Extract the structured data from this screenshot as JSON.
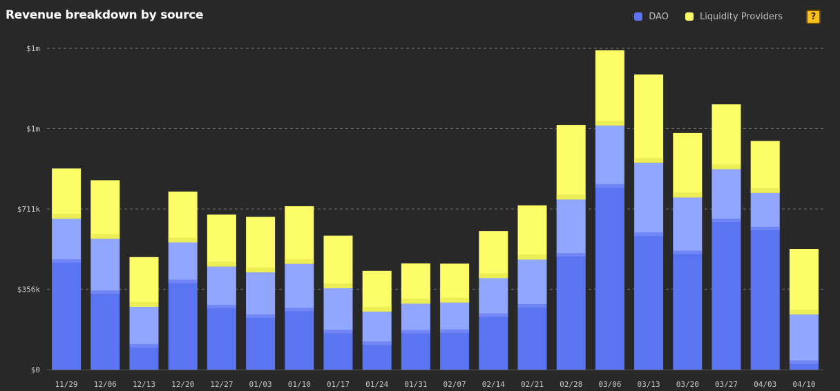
{
  "header": {
    "title": "Revenue breakdown by source"
  },
  "legend": {
    "items": [
      {
        "label": "DAO",
        "color": "#5b75f2"
      },
      {
        "label": "Liquidity Providers",
        "color": "#fdfd6a"
      }
    ],
    "help_icon": "question-block-icon",
    "help_glyph": "?"
  },
  "colors": {
    "dao": "#5b75f2",
    "dao_light": "#91a6fe",
    "dao_sep": "#7186f6",
    "lp": "#fdfd6a",
    "lp_sep": "#eded55",
    "background": "#282828",
    "grid": "#a0a0a0"
  },
  "chart_data": {
    "type": "bar",
    "stacked": true,
    "title": "Revenue breakdown by source",
    "categories": [
      "11/29",
      "12/06",
      "12/13",
      "12/20",
      "12/27",
      "01/03",
      "01/10",
      "01/17",
      "01/24",
      "01/31",
      "02/07",
      "02/14",
      "02/21",
      "02/28",
      "03/06",
      "03/13",
      "03/20",
      "03/27",
      "04/03",
      "04/10"
    ],
    "series": [
      {
        "name": "DAO",
        "color": "#5b75f2",
        "values": [
          473,
          335,
          98,
          383,
          271,
          229,
          258,
          161,
          109,
          160,
          163,
          233,
          275,
          500,
          806,
          592,
          511,
          653,
          617,
          25
        ]
      },
      {
        "name": "DAO",
        "color": "#91a6fe",
        "values": [
          195,
          244,
          180,
          180,
          185,
          202,
          210,
          199,
          148,
          132,
          134,
          172,
          212,
          253,
          274,
          324,
          251,
          234,
          165,
          219
        ]
      },
      {
        "name": "Liquidity Providers",
        "color": "#fdfd6a",
        "values": [
          222,
          259,
          220,
          225,
          230,
          245,
          255,
          233,
          180,
          178,
          172,
          208,
          240,
          330,
          333,
          390,
          285,
          287,
          230,
          290
        ]
      }
    ],
    "y_ticks": [
      {
        "value": 0,
        "label": "$0"
      },
      {
        "value": 356,
        "label": "$356k"
      },
      {
        "value": 711,
        "label": "$711k"
      },
      {
        "value": 1067,
        "label": "$1m"
      },
      {
        "value": 1422,
        "label": "$1m"
      }
    ],
    "ylim": [
      0,
      1422
    ],
    "grid": true,
    "legend_position": "top-right",
    "xlabel": "",
    "ylabel": ""
  }
}
